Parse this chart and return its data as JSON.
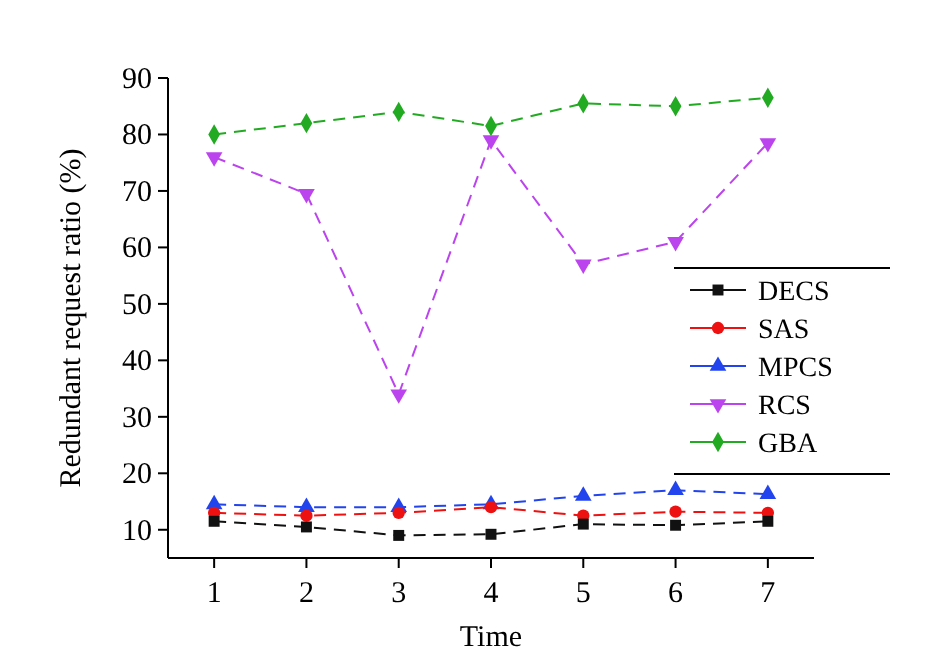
{
  "chart_data": {
    "type": "line",
    "xlabel": "Time",
    "ylabel": "Redundant request ratio (%)",
    "x": [
      1,
      2,
      3,
      4,
      5,
      6,
      7
    ],
    "xlim": [
      0.5,
      7.5
    ],
    "xticks": [
      1,
      2,
      3,
      4,
      5,
      6,
      7
    ],
    "ylim": [
      5,
      90
    ],
    "yticks": [
      10,
      20,
      30,
      40,
      50,
      60,
      70,
      80,
      90
    ],
    "legend": "right",
    "line_style": "dashed",
    "grid": false,
    "series": [
      {
        "name": "DECS",
        "color": "#111111",
        "marker": "square",
        "values": [
          11.5,
          10.5,
          9,
          9.2,
          11,
          10.8,
          11.5
        ]
      },
      {
        "name": "SAS",
        "color": "#ee1111",
        "marker": "circle",
        "values": [
          13,
          12.5,
          13,
          14,
          12.5,
          13.2,
          13
        ]
      },
      {
        "name": "MPCS",
        "color": "#2244ee",
        "marker": "triangle",
        "values": [
          14.5,
          14,
          14,
          14.5,
          16,
          17,
          16.3
        ]
      },
      {
        "name": "RCS",
        "color": "#bb44ee",
        "marker": "triangle-down",
        "values": [
          76,
          69.5,
          34,
          79,
          57,
          61,
          78.5
        ]
      },
      {
        "name": "GBA",
        "color": "#22aa22",
        "marker": "diamond",
        "values": [
          80,
          82,
          84,
          81.5,
          85.5,
          85,
          86.5
        ]
      }
    ]
  }
}
